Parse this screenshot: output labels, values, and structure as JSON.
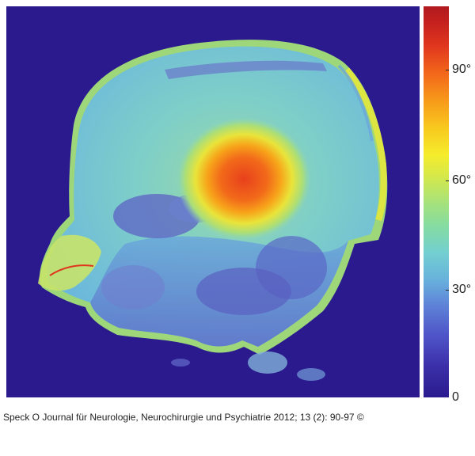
{
  "colorbar": {
    "ticks": [
      "90°",
      "60°",
      "30°",
      "0"
    ]
  },
  "caption": "Speck O Journal für Neurologie, Neurochirurgie und Psychiatrie 2012; 13 (2): 90-97 ©"
}
